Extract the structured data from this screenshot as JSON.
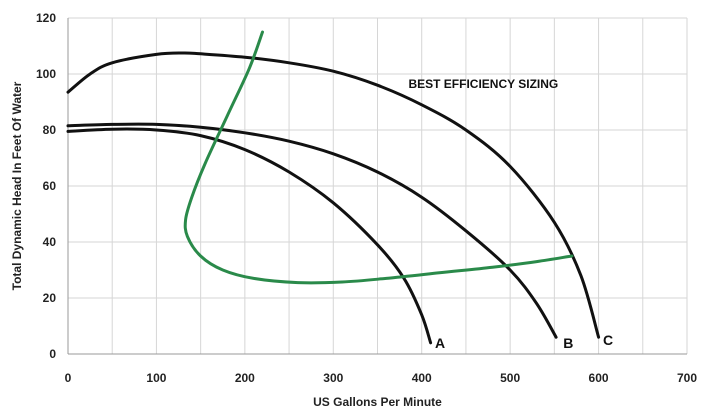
{
  "chart_data": {
    "type": "line",
    "title": "",
    "xlabel": "US Gallons Per Minute",
    "ylabel": "Total Dynamic Head In Feet Of Water",
    "xlim": [
      0,
      700
    ],
    "ylim": [
      0,
      120
    ],
    "x_ticks": [
      0,
      100,
      200,
      300,
      400,
      500,
      600,
      700
    ],
    "y_ticks": [
      0,
      20,
      40,
      60,
      80,
      100,
      120
    ],
    "grid": true,
    "legend": "none",
    "annotations": [
      {
        "text": "BEST EFFICIENCY SIZING",
        "x": 385,
        "y": 95
      }
    ],
    "series": [
      {
        "name": "A",
        "color": "#111111",
        "label_at": {
          "x": 415,
          "y": 4
        },
        "points": [
          [
            0,
            79.5
          ],
          [
            50,
            80.3
          ],
          [
            100,
            80
          ],
          [
            150,
            78
          ],
          [
            200,
            73
          ],
          [
            250,
            65
          ],
          [
            300,
            54
          ],
          [
            350,
            39
          ],
          [
            380,
            27
          ],
          [
            400,
            14
          ],
          [
            410,
            4
          ]
        ]
      },
      {
        "name": "B",
        "color": "#111111",
        "label_at": {
          "x": 560,
          "y": 4
        },
        "points": [
          [
            0,
            81.5
          ],
          [
            50,
            82
          ],
          [
            100,
            82
          ],
          [
            150,
            81
          ],
          [
            200,
            79
          ],
          [
            250,
            76
          ],
          [
            300,
            71.5
          ],
          [
            350,
            65
          ],
          [
            400,
            56
          ],
          [
            450,
            44
          ],
          [
            500,
            30
          ],
          [
            530,
            18
          ],
          [
            552,
            6
          ]
        ]
      },
      {
        "name": "C",
        "color": "#111111",
        "label_at": {
          "x": 605,
          "y": 5
        },
        "points": [
          [
            0,
            93.5
          ],
          [
            25,
            100
          ],
          [
            50,
            104
          ],
          [
            100,
            107
          ],
          [
            130,
            107.5
          ],
          [
            150,
            107.2
          ],
          [
            200,
            106
          ],
          [
            250,
            104
          ],
          [
            300,
            101
          ],
          [
            350,
            96
          ],
          [
            400,
            89
          ],
          [
            450,
            80
          ],
          [
            500,
            67
          ],
          [
            550,
            47
          ],
          [
            580,
            28
          ],
          [
            600,
            6
          ]
        ]
      },
      {
        "name": "",
        "color": "#2a8a4a",
        "points": [
          [
            220,
            115
          ],
          [
            205,
            102
          ],
          [
            180,
            85
          ],
          [
            155,
            68
          ],
          [
            140,
            56
          ],
          [
            133,
            48
          ],
          [
            135,
            42
          ],
          [
            150,
            35
          ],
          [
            175,
            30
          ],
          [
            210,
            27
          ],
          [
            260,
            25.5
          ],
          [
            310,
            25.7
          ],
          [
            360,
            27
          ],
          [
            420,
            29
          ],
          [
            480,
            31
          ],
          [
            530,
            33
          ],
          [
            570,
            35
          ]
        ]
      }
    ]
  }
}
